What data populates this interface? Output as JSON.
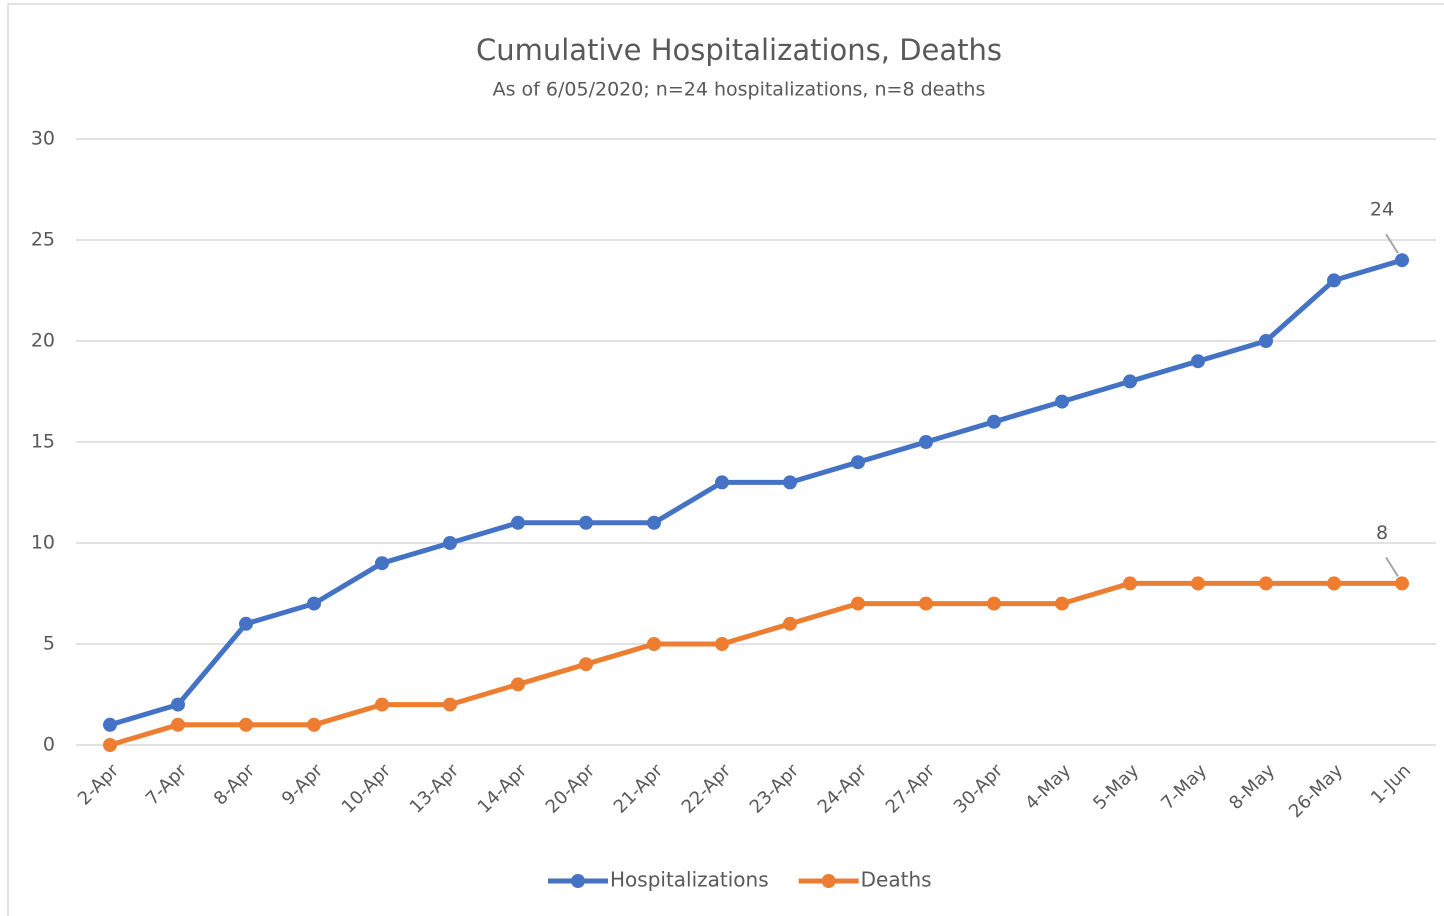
{
  "chart_data": {
    "type": "line",
    "title": "Cumulative Hospitalizations, Deaths",
    "subtitle": "As of 6/05/2020; n=24 hospitalizations, n=8 deaths",
    "categories": [
      "2-Apr",
      "7-Apr",
      "8-Apr",
      "9-Apr",
      "10-Apr",
      "13-Apr",
      "14-Apr",
      "20-Apr",
      "21-Apr",
      "22-Apr",
      "23-Apr",
      "24-Apr",
      "27-Apr",
      "30-Apr",
      "4-May",
      "5-May",
      "7-May",
      "8-May",
      "26-May",
      "1-Jun"
    ],
    "series": [
      {
        "name": "Hospitalizations",
        "color": "#4472c4",
        "values": [
          1,
          2,
          6,
          7,
          9,
          10,
          11,
          11,
          11,
          13,
          13,
          14,
          15,
          16,
          17,
          18,
          19,
          20,
          23,
          24
        ]
      },
      {
        "name": "Deaths",
        "color": "#ed7d31",
        "values": [
          0,
          1,
          1,
          1,
          2,
          2,
          3,
          4,
          5,
          5,
          6,
          7,
          7,
          7,
          7,
          8,
          8,
          8,
          8,
          8
        ]
      }
    ],
    "ylim": [
      0,
      30
    ],
    "yticks": [
      0,
      5,
      10,
      15,
      20,
      25,
      30
    ],
    "grid": true,
    "legend": "bottom"
  }
}
